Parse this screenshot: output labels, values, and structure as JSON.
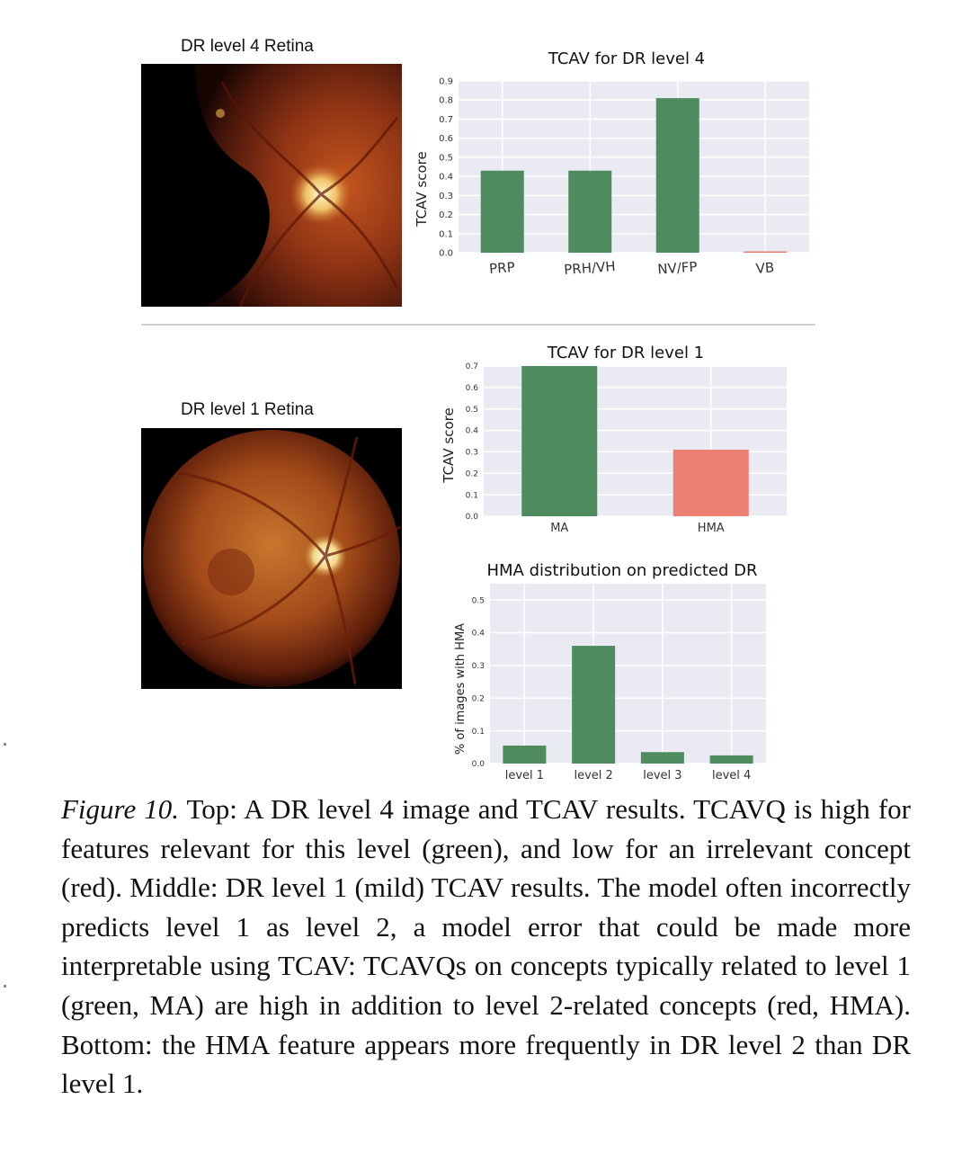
{
  "panels": {
    "retina_top": {
      "title": "DR level 4 Retina"
    },
    "retina_bottom": {
      "title": "DR level 1 Retina"
    }
  },
  "colors": {
    "green": "#4e8c5f",
    "red": "#ea7f72",
    "grid": "#ffffff",
    "plot_bg": "#eaeaf2"
  },
  "chart_data": [
    {
      "type": "bar",
      "title": "TCAV for DR level 4",
      "ylabel": "TCAV score",
      "xlabel": "",
      "categories": [
        "PRP",
        "PRH/VH",
        "NV/FP",
        "VB"
      ],
      "values": [
        0.43,
        0.43,
        0.81,
        0.005
      ],
      "bar_colors": [
        "green",
        "green",
        "green",
        "red"
      ],
      "ylim": [
        0,
        0.9
      ],
      "yticks": [
        "0.0",
        "0.1",
        "0.2",
        "0.3",
        "0.4",
        "0.5",
        "0.6",
        "0.7",
        "0.8",
        "0.9"
      ],
      "grid": true
    },
    {
      "type": "bar",
      "title": "TCAV for DR level 1",
      "ylabel": "TCAV score",
      "xlabel": "",
      "categories": [
        "MA",
        "HMA"
      ],
      "values": [
        0.7,
        0.31
      ],
      "bar_colors": [
        "green",
        "red"
      ],
      "ylim": [
        0,
        0.7
      ],
      "yticks": [
        "0.0",
        "0.1",
        "0.2",
        "0.3",
        "0.4",
        "0.5",
        "0.6",
        "0.7"
      ],
      "grid": true
    },
    {
      "type": "bar",
      "title": "HMA distribution on predicted DR",
      "ylabel": "% of images with HMA",
      "xlabel": "",
      "categories": [
        "level 1",
        "level 2",
        "level 3",
        "level 4"
      ],
      "values": [
        0.055,
        0.36,
        0.035,
        0.025
      ],
      "bar_colors": [
        "green",
        "green",
        "green",
        "green"
      ],
      "ylim": [
        0,
        0.55
      ],
      "yticks": [
        "0.0",
        "0.1",
        "0.2",
        "0.3",
        "0.4",
        "0.5"
      ],
      "grid": true
    }
  ],
  "caption": {
    "label": "Figure 10.",
    "text_parts": [
      " Top: A DR level 4 image and TCAV results. TCAV",
      "Q",
      " is high for features relevant for this level (green), and low for an irrelevant concept (red). Middle: DR level 1 (mild) TCAV results. The model often incorrectly predicts level 1 as level 2, a model error that could be made more interpretable using TCAV: TCAV",
      "Q",
      "s on concepts typically related to level 1 (green, MA) are high in addition to level 2-related concepts (red, HMA). Bottom: the HMA feature appears more frequently in DR level 2 than DR level 1."
    ]
  }
}
